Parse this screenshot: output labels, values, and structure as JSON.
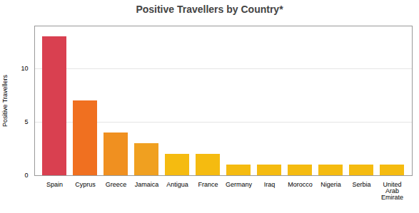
{
  "chart_data": {
    "type": "bar",
    "title": "Positive Travellers by Country*",
    "ylabel": "Positive Travellers",
    "categories": [
      "Spain",
      "Cyprus",
      "Greece",
      "Jamaica",
      "Antigua",
      "France",
      "Germany",
      "Iraq",
      "Morocco",
      "Nigeria",
      "Serbia",
      "United\nArab\nEmirate"
    ],
    "values": [
      13,
      7,
      4,
      3,
      2,
      2,
      1,
      1,
      1,
      1,
      1,
      1
    ],
    "colors": [
      "#d94050",
      "#f07020",
      "#f09020",
      "#f0a020",
      "#f5bb10",
      "#f5bb10",
      "#f5bb10",
      "#f5bb10",
      "#f5bb10",
      "#f5bb10",
      "#f5bb10",
      "#f5bb10"
    ],
    "ylim": [
      0,
      14
    ],
    "yticks": [
      0,
      5,
      10
    ],
    "grid": true
  }
}
